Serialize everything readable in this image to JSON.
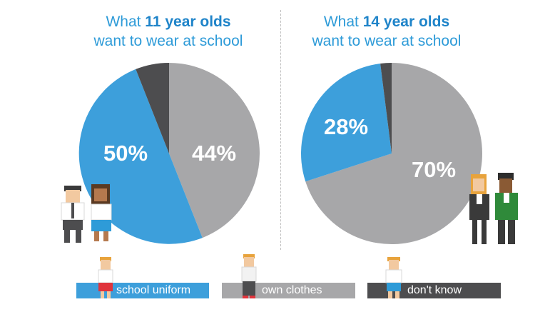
{
  "colors": {
    "school_uniform": "#3d9fdb",
    "own_clothes": "#a7a7a9",
    "dont_know": "#4d4d4f",
    "title_text": "#2e9bd8",
    "title_accent": "#1f84c9"
  },
  "chart_data": [
    {
      "type": "pie",
      "title_prefix": "What ",
      "title_bold": "11 year olds",
      "title_line2": "want to wear at school",
      "slices": [
        {
          "label": "school uniform",
          "value": 50,
          "display": "50%"
        },
        {
          "label": "own clothes",
          "value": 44,
          "display": "44%"
        },
        {
          "label": "don't know",
          "value": 6,
          "display": ""
        }
      ]
    },
    {
      "type": "pie",
      "title_prefix": "What ",
      "title_bold": "14 year olds",
      "title_line2": "want to wear at school",
      "slices": [
        {
          "label": "school uniform",
          "value": 28,
          "display": "28%"
        },
        {
          "label": "own clothes",
          "value": 70,
          "display": "70%"
        },
        {
          "label": "don't know",
          "value": 2,
          "display": ""
        }
      ]
    }
  ],
  "legend": [
    {
      "key": "school_uniform",
      "label": "school uniform"
    },
    {
      "key": "own_clothes",
      "label": "own clothes"
    },
    {
      "key": "dont_know",
      "label": "don't know"
    }
  ]
}
